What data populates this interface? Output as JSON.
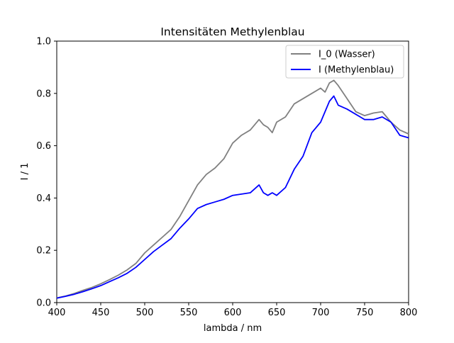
{
  "chart_data": {
    "type": "line",
    "title": "Intensitäten Methylenblau",
    "xlabel": "lambda / nm",
    "ylabel": "I / 1",
    "xlim": [
      400,
      800
    ],
    "ylim": [
      0.0,
      1.0
    ],
    "xticks": [
      "400",
      "450",
      "500",
      "550",
      "600",
      "650",
      "700",
      "750",
      "800"
    ],
    "yticks": [
      "0.0",
      "0.2",
      "0.4",
      "0.6",
      "0.8",
      "1.0"
    ],
    "grid": false,
    "legend_position": "top-right",
    "x": [
      400,
      410,
      420,
      430,
      440,
      450,
      460,
      470,
      480,
      490,
      500,
      510,
      520,
      530,
      540,
      550,
      560,
      570,
      580,
      590,
      600,
      610,
      620,
      630,
      635,
      640,
      645,
      650,
      660,
      670,
      680,
      690,
      700,
      705,
      710,
      715,
      720,
      730,
      740,
      750,
      760,
      770,
      780,
      790,
      800
    ],
    "series": [
      {
        "name": "I_0 (Wasser)",
        "color": "#808080",
        "values": [
          0.018,
          0.025,
          0.035,
          0.047,
          0.058,
          0.072,
          0.088,
          0.105,
          0.125,
          0.15,
          0.19,
          0.22,
          0.25,
          0.28,
          0.33,
          0.39,
          0.45,
          0.49,
          0.515,
          0.55,
          0.61,
          0.64,
          0.66,
          0.7,
          0.68,
          0.67,
          0.65,
          0.69,
          0.71,
          0.76,
          0.78,
          0.8,
          0.82,
          0.805,
          0.84,
          0.85,
          0.83,
          0.78,
          0.73,
          0.715,
          0.725,
          0.73,
          0.69,
          0.66,
          0.645
        ]
      },
      {
        "name": "I (Methylenblau)",
        "color": "#0000ff",
        "values": [
          0.017,
          0.024,
          0.032,
          0.042,
          0.053,
          0.065,
          0.08,
          0.095,
          0.112,
          0.135,
          0.165,
          0.195,
          0.22,
          0.245,
          0.285,
          0.32,
          0.36,
          0.375,
          0.385,
          0.395,
          0.41,
          0.415,
          0.42,
          0.45,
          0.42,
          0.41,
          0.42,
          0.41,
          0.44,
          0.51,
          0.56,
          0.65,
          0.69,
          0.73,
          0.77,
          0.79,
          0.755,
          0.74,
          0.72,
          0.7,
          0.7,
          0.71,
          0.69,
          0.64,
          0.63
        ]
      }
    ]
  }
}
